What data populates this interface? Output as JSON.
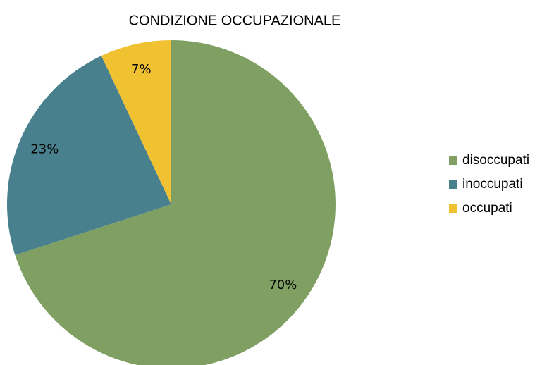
{
  "chart_data": {
    "type": "pie",
    "title": "CONDIZIONE OCCUPAZIONALE",
    "categories": [
      "disoccupati",
      "inoccupati",
      "occupati"
    ],
    "values": [
      70,
      23,
      7
    ],
    "value_labels": [
      "70%",
      "23%",
      "7%"
    ],
    "colors": [
      "#7fa062",
      "#48808e",
      "#f0c131"
    ],
    "legend": "right"
  }
}
